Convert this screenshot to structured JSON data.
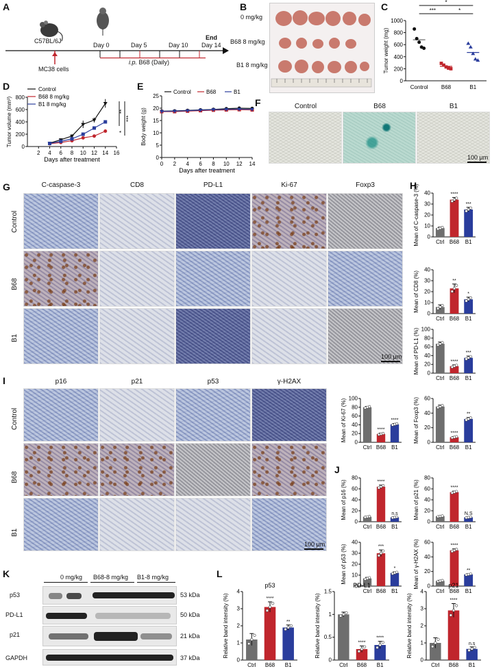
{
  "panels": {
    "A": {
      "letter": "A",
      "strain": "C57BL/6J",
      "cells": "MC38 cells",
      "days": [
        "Day 0",
        "Day 5",
        "Day 10",
        "Day 14"
      ],
      "end": "End",
      "treatment_prefix": "i.p.",
      "treatment": " B68 (Daily)"
    },
    "B": {
      "letter": "B",
      "rows": [
        "0 mg/kg",
        "B68 8 mg/kg",
        "B1 8 mg/kg"
      ]
    },
    "C": {
      "letter": "C"
    },
    "D": {
      "letter": "D",
      "sig": [
        "**",
        "*",
        "***"
      ]
    },
    "E": {
      "letter": "E"
    },
    "F": {
      "letter": "F",
      "cols": [
        "Control",
        "B68",
        "B1"
      ],
      "scale": "100 μm"
    },
    "G": {
      "letter": "G",
      "cols": [
        "C-caspase-3",
        "CD8",
        "PD-L1",
        "Ki-67",
        "Foxp3"
      ],
      "rows": [
        "Control",
        "B68",
        "B1"
      ],
      "scale": "100 μm"
    },
    "H": {
      "letter": "H"
    },
    "I": {
      "letter": "I",
      "cols": [
        "p16",
        "p21",
        "p53",
        "γ-H2AX"
      ],
      "rows": [
        "Control",
        "B68",
        "B1"
      ],
      "scale": "100 μm"
    },
    "J": {
      "letter": "J"
    },
    "K": {
      "letter": "K",
      "groups": [
        "0 mg/kg",
        "B68-8 mg/kg",
        "B1-8 mg/kg"
      ],
      "proteins": [
        "p53",
        "PD-L1",
        "p21",
        "GAPDH"
      ],
      "sizes": [
        "53 kDa",
        "50 kDa",
        "21 kDa",
        "37 kDa"
      ]
    },
    "L": {
      "letter": "L"
    }
  },
  "colors": {
    "ctrl": "#6e6e6e",
    "b68": "#c0262d",
    "b1": "#2a3d9c",
    "black": "#111111"
  },
  "chart_data": [
    {
      "id": "C",
      "type": "scatter",
      "ylabel": "Tumor weight (mg)",
      "ylim": [
        0,
        1000
      ],
      "yticks": [
        0,
        200,
        400,
        600,
        800,
        1000
      ],
      "categories": [
        "Control",
        "B68",
        "B1"
      ],
      "means": [
        680,
        240,
        470
      ],
      "points": [
        [
          860,
          700,
          640,
          560,
          540
        ],
        [
          290,
          260,
          230,
          210,
          200
        ],
        [
          620,
          560,
          450,
          360,
          340
        ]
      ],
      "sig": [
        {
          "from": 0,
          "to": 2,
          "label": "*"
        },
        {
          "from": 0,
          "to": 1,
          "label": "***"
        },
        {
          "from": 1,
          "to": 2,
          "label": "*"
        }
      ]
    },
    {
      "id": "D",
      "type": "line",
      "xlabel": "Days after treatment",
      "ylabel": "Tumor volume (mm³)",
      "xlim": [
        0,
        16
      ],
      "xticks": [
        2,
        4,
        6,
        8,
        10,
        12,
        14,
        16
      ],
      "ylim": [
        0,
        800
      ],
      "yticks": [
        0,
        200,
        400,
        600,
        800
      ],
      "x": [
        4,
        6,
        8,
        10,
        12,
        14
      ],
      "series": [
        {
          "name": "Control",
          "values": [
            55,
            110,
            170,
            360,
            430,
            700
          ],
          "err": [
            10,
            20,
            30,
            60,
            40,
            70
          ]
        },
        {
          "name": "B68 8 mg/kg",
          "values": [
            45,
            65,
            95,
            140,
            170,
            250
          ],
          "err": [
            8,
            10,
            15,
            20,
            20,
            25
          ]
        },
        {
          "name": "B1 8 mg/kg",
          "values": [
            50,
            85,
            125,
            200,
            300,
            400
          ],
          "err": [
            8,
            12,
            20,
            25,
            25,
            25
          ]
        }
      ]
    },
    {
      "id": "E",
      "type": "line",
      "xlabel": "Days after treatment",
      "ylabel": "Body weight (g)",
      "xlim": [
        0,
        14
      ],
      "xticks": [
        0,
        2,
        4,
        6,
        8,
        10,
        12,
        14
      ],
      "ylim": [
        0,
        25
      ],
      "yticks": [
        0,
        5,
        10,
        15,
        20,
        25
      ],
      "x": [
        0,
        2,
        4,
        6,
        8,
        10,
        12,
        14
      ],
      "series": [
        {
          "name": "Control",
          "values": [
            18.8,
            18.9,
            19.1,
            19.3,
            19.5,
            19.8,
            20.0,
            19.9
          ]
        },
        {
          "name": "B68",
          "values": [
            18.6,
            18.6,
            18.8,
            19.0,
            19.2,
            19.3,
            19.4,
            19.3
          ]
        },
        {
          "name": "B1",
          "values": [
            18.7,
            18.8,
            19.0,
            19.2,
            19.4,
            19.5,
            19.6,
            19.5
          ]
        }
      ]
    },
    {
      "id": "H1",
      "type": "bar",
      "ylabel": "Mean of C-caspase-3 (%)",
      "ylim": [
        0,
        40
      ],
      "yticks": [
        0,
        10,
        20,
        30,
        40
      ],
      "categories": [
        "Ctrl",
        "B68",
        "B1"
      ],
      "values": [
        8,
        34,
        25
      ],
      "err": [
        1,
        2,
        2
      ],
      "sig": [
        "",
        "****",
        "***"
      ]
    },
    {
      "id": "H2",
      "type": "bar",
      "ylabel": "Mean of CD8 (%)",
      "ylim": [
        0,
        40
      ],
      "yticks": [
        0,
        10,
        20,
        30,
        40
      ],
      "categories": [
        "Ctrl",
        "B68",
        "B1"
      ],
      "values": [
        6,
        23,
        13
      ],
      "err": [
        2,
        4,
        2
      ],
      "sig": [
        "",
        "**",
        "*"
      ]
    },
    {
      "id": "H3",
      "type": "bar",
      "ylabel": "Mean of PD-L1 (%)",
      "ylim": [
        0,
        100
      ],
      "yticks": [
        0,
        20,
        40,
        60,
        80,
        100
      ],
      "categories": [
        "Ctrl",
        "B68",
        "B1"
      ],
      "values": [
        67,
        16,
        35
      ],
      "err": [
        4,
        3,
        4
      ],
      "sig": [
        "",
        "****",
        "***"
      ]
    },
    {
      "id": "H4",
      "type": "bar",
      "ylabel": "Mean of Ki-67 (%)",
      "ylim": [
        0,
        100
      ],
      "yticks": [
        0,
        20,
        40,
        60,
        80,
        100
      ],
      "categories": [
        "Ctrl",
        "B68",
        "B1"
      ],
      "values": [
        80,
        19,
        41
      ],
      "err": [
        2,
        2,
        2
      ],
      "sig": [
        "",
        "****",
        "****"
      ]
    },
    {
      "id": "H5",
      "type": "bar",
      "ylabel": "Mean of Foxp3 (%)",
      "ylim": [
        0,
        60
      ],
      "yticks": [
        0,
        20,
        40,
        60
      ],
      "categories": [
        "Ctrl",
        "B68",
        "B1"
      ],
      "values": [
        49,
        7,
        32
      ],
      "err": [
        2,
        1,
        2
      ],
      "sig": [
        "",
        "****",
        "**"
      ]
    },
    {
      "id": "J1",
      "type": "bar",
      "ylabel": "Mean of p16 (%)",
      "ylim": [
        0,
        80
      ],
      "yticks": [
        0,
        20,
        40,
        60,
        80
      ],
      "categories": [
        "Ctrl",
        "B68",
        "B1"
      ],
      "values": [
        9,
        64,
        8
      ],
      "err": [
        1,
        3,
        1
      ],
      "sig": [
        "",
        "****",
        "n.s"
      ]
    },
    {
      "id": "J2",
      "type": "bar",
      "ylabel": "Mean of p21 (%)",
      "ylim": [
        0,
        80
      ],
      "yticks": [
        0,
        20,
        40,
        60,
        80
      ],
      "categories": [
        "Ctrl",
        "B68",
        "B1"
      ],
      "values": [
        10,
        54,
        8
      ],
      "err": [
        1,
        2,
        1
      ],
      "sig": [
        "",
        "****",
        "N.S"
      ]
    },
    {
      "id": "J3",
      "type": "bar",
      "ylabel": "Mean of p53 (%)",
      "ylim": [
        0,
        40
      ],
      "yticks": [
        0,
        10,
        20,
        30,
        40
      ],
      "categories": [
        "Ctrl",
        "B68",
        "B1"
      ],
      "values": [
        7,
        30,
        12
      ],
      "err": [
        1,
        3,
        1
      ],
      "sig": [
        "",
        "***",
        "*"
      ]
    },
    {
      "id": "J4",
      "type": "bar",
      "ylabel": "Mean of γ-H2AX (%)",
      "ylim": [
        0,
        60
      ],
      "yticks": [
        0,
        20,
        40,
        60
      ],
      "categories": [
        "Ctrl",
        "B68",
        "B1"
      ],
      "values": [
        7,
        49,
        16
      ],
      "err": [
        1,
        2,
        1
      ],
      "sig": [
        "",
        "****",
        "**"
      ]
    },
    {
      "id": "L1",
      "type": "bar",
      "title": "p53",
      "ylabel": "Relative band intensity (%)",
      "ylim": [
        0,
        4
      ],
      "yticks": [
        0,
        1,
        2,
        3,
        4
      ],
      "categories": [
        "Ctrl",
        "B68",
        "B1"
      ],
      "values": [
        1.2,
        3.1,
        1.9
      ],
      "err": [
        0.35,
        0.3,
        0.15
      ],
      "sig": [
        "",
        "****",
        "**"
      ]
    },
    {
      "id": "L2",
      "type": "bar",
      "title": "PD-L1",
      "ylabel": "Relative band intensity (%)",
      "ylim": [
        0,
        1.5
      ],
      "yticks": [
        0,
        0.5,
        1.0,
        1.5
      ],
      "categories": [
        "Ctrl",
        "B68",
        "B1"
      ],
      "values": [
        1.0,
        0.24,
        0.33
      ],
      "err": [
        0.05,
        0.07,
        0.08
      ],
      "sig": [
        "",
        "****",
        "****"
      ]
    },
    {
      "id": "L3",
      "type": "bar",
      "title": "p21",
      "ylabel": "Relative band intensity (%)",
      "ylim": [
        0,
        4
      ],
      "yticks": [
        0,
        1,
        2,
        3,
        4
      ],
      "categories": [
        "Ctrl",
        "B68",
        "B1"
      ],
      "values": [
        1.0,
        2.9,
        0.65
      ],
      "err": [
        0.3,
        0.4,
        0.12
      ],
      "sig": [
        "",
        "****",
        "n.s"
      ]
    }
  ]
}
